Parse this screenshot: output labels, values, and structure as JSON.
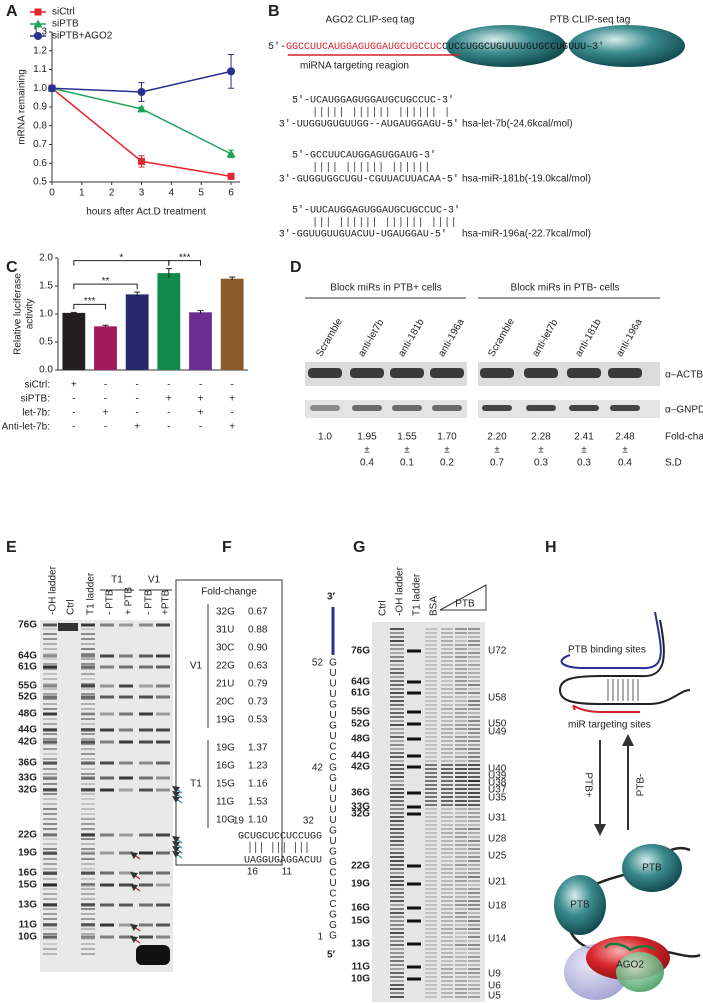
{
  "panel_labels": [
    "A",
    "B",
    "C",
    "D",
    "E",
    "F",
    "G",
    "H"
  ],
  "chart_data": [
    {
      "type": "line",
      "x_label": "hours after Act.D treatment",
      "y_label": "mRNA remaining",
      "x": [
        0,
        3,
        6
      ],
      "xlim": [
        0,
        6.3
      ],
      "xticks": [
        0,
        1,
        2,
        3,
        4,
        5,
        6
      ],
      "ylim": [
        0.5,
        1.3
      ],
      "yticks": [
        0.5,
        0.6,
        0.7,
        0.8,
        0.9,
        {
          "value": 1,
          "label": "1.0"
        },
        1.1,
        1.2,
        1.3
      ],
      "legend": "upper left",
      "series": [
        {
          "name": "siCtrl",
          "color": "#e3262d",
          "marker": "square",
          "values": [
            1,
            0.61,
            0.53
          ],
          "errors": [
            0,
            0.03,
            0.01
          ]
        },
        {
          "name": "siPTB",
          "color": "#1fa35b",
          "marker": "triangle",
          "values": [
            1,
            0.89,
            0.65
          ],
          "errors": [
            0,
            0.01,
            0.02
          ]
        },
        {
          "name": "siPTB+AGO2",
          "color": "#2b2f8f",
          "marker": "circle",
          "values": [
            1,
            0.98,
            1.09
          ],
          "errors": [
            0,
            0.05,
            0.09
          ]
        }
      ]
    },
    {
      "type": "bar",
      "y_label": [
        "Relative luciferase",
        "activity"
      ],
      "ylim": [
        0,
        2
      ],
      "yticks": [
        {
          "value": 0,
          "label": "0.0"
        },
        0.5,
        {
          "value": 1,
          "label": "1.0"
        },
        1.5,
        {
          "value": 2,
          "label": "2.0"
        }
      ],
      "values": [
        1.02,
        0.78,
        1.35,
        1.73,
        1.03,
        1.63
      ],
      "errors": [
        0.01,
        0.02,
        0.04,
        0.08,
        0.03,
        0.03
      ],
      "colors": [
        "#231f20",
        "#a3195b",
        "#27286c",
        "#0f8a4a",
        "#6a2d91",
        "#8a5a2b"
      ],
      "conditions": [
        {
          "name": "siCtrl:",
          "marks": [
            "+",
            "-",
            "-",
            "-",
            "-",
            "-"
          ]
        },
        {
          "name": "siPTB:",
          "marks": [
            "-",
            "-",
            "-",
            "+",
            "+",
            "+"
          ]
        },
        {
          "name": "let-7b:",
          "marks": [
            "-",
            "+",
            "-",
            "-",
            "+",
            "-"
          ]
        },
        {
          "name": "Anti-let-7b:",
          "marks": [
            "-",
            "-",
            "+",
            "-",
            "-",
            "+"
          ]
        }
      ],
      "significance": [
        {
          "label": "***",
          "from": 0,
          "to": 1
        },
        {
          "label": "**",
          "from": 0,
          "to": 2
        },
        {
          "label": "*",
          "from": 0,
          "to": 3
        },
        {
          "label": "***",
          "from": 3,
          "to": 4
        }
      ]
    }
  ],
  "panel_b": {
    "ago2_tag": "AGO2 CLIP-seq tag",
    "ptb_tag": "PTB CLIP-seq tag",
    "sequence": {
      "start": "5′-",
      "target": "GGCCUUCAUGGAGUGGAUGCUGCCUC",
      "rest": "CUCCUGGCUGUUUUGUGCCUGUUU",
      "end": "–3′"
    },
    "target_label": "miRNA targeting reagion",
    "duplexes": [
      {
        "top": "5′-UCAUGGAGUGGAUGCUGCCUC-3′",
        "bottom": "3′-UUGGUGUGUUGG--AUGAUGGAGU-5′",
        "name": "hsa-let-7b(-24.6kcal/mol)"
      },
      {
        "top": "5′-GCCUUCAUGGAGUGGAUG-3′",
        "bottom": "3′-GUGGUGGCUGU-CGUUACUUACAA-5′",
        "name": "hsa-miR-181b(-19.0kcal/mol)"
      },
      {
        "top": "5′-UUCAUGGAGUGGAUGCUGCCUC-3′",
        "bottom": "3′-GGUUGUUGUACUU-UGAUGGAU-5′",
        "name": "hsa-miR-196a(-22.7kcal/mol)"
      }
    ]
  },
  "panel_d": {
    "groups": [
      "Block miRs in PTB+ cells",
      "Block miRs in PTB- cells"
    ],
    "lanes": [
      "Scramble",
      "anti-let7b",
      "anti-181b",
      "anti-196a",
      "Scramble",
      "anti-let7b",
      "anti-181b",
      "anti-196a"
    ],
    "bands": [
      "α–ACTB",
      "α–GNPDA1"
    ],
    "fold_change": [
      "1.0",
      "1.95",
      "1.55",
      "1.70",
      "2.20",
      "2.28",
      "2.41",
      "2.48"
    ],
    "fold_label": "Fold-change",
    "sd": [
      null,
      "0.4",
      "0.1",
      "0.2",
      "0.7",
      "0.3",
      "0.3",
      "0.4"
    ],
    "sd_label": "S.D",
    "pm": "±"
  },
  "panel_e": {
    "lanes": [
      "-OH ladder",
      "Ctrl",
      "T1 ladder",
      "- PTB",
      "+ PTB",
      "- PTB",
      "+PTB"
    ],
    "groups": [
      "T1",
      "V1"
    ],
    "ladder": [
      "76G",
      "64G",
      "61G",
      "55G",
      "52G",
      "48G",
      "44G",
      "42G",
      "36G",
      "33G",
      "32G",
      "22G",
      "19G",
      "16G",
      "15G",
      "13G",
      "11G",
      "10G"
    ],
    "ladder_colors": [
      "#222",
      "#222",
      "#222",
      "#222",
      "#c1272d",
      "#222",
      "#222",
      "#c1272d",
      "#222",
      "#222",
      "#c1272d",
      "#222",
      "#c1272d",
      "#c1272d",
      "#222",
      "#222",
      "#c1272d",
      "#222"
    ],
    "box_title": "Fold-change",
    "box_groups": [
      {
        "name": "V1",
        "color": "#2b8db3",
        "rows": [
          [
            "32G",
            "0.67"
          ],
          [
            "31U",
            "0.88"
          ],
          [
            "30C",
            "0.90"
          ],
          [
            "22G",
            "0.63"
          ],
          [
            "21U",
            "0.79"
          ],
          [
            "20C",
            "0.73"
          ],
          [
            "19G",
            "0.53"
          ]
        ]
      },
      {
        "name": "T1",
        "color": "#c1272d",
        "rows": [
          [
            "19G",
            "1.37"
          ],
          [
            "16G",
            "1.23"
          ],
          [
            "15G",
            "1.16"
          ],
          [
            "11G",
            "1.53"
          ],
          [
            "10G",
            "1.10"
          ]
        ]
      }
    ]
  },
  "panel_f": {
    "three_prime": "3′",
    "five_prime": "5′",
    "column": [
      "G",
      "U",
      "U",
      "U",
      "G",
      "U",
      "G",
      "U",
      "C",
      "C",
      "G",
      "G",
      "U",
      "U",
      "U",
      "U",
      "G",
      "U",
      "G",
      "G",
      "C",
      "U",
      "C",
      "C",
      "G",
      "G",
      "G"
    ],
    "upper": "GCUGCUCCUCCUGG",
    "lower": "UAGGUGAGGACUU",
    "numbers": [
      "52",
      "42",
      "19",
      "32",
      "16",
      "11",
      "1"
    ],
    "number_color": "#c1272d"
  },
  "panel_g": {
    "lanes": [
      "Ctrl",
      "-OH ladder",
      "T1 ladder",
      "BSA"
    ],
    "ramp_label": "PTB",
    "ladder": [
      "76G",
      "64G",
      "61G",
      "55G",
      "52G",
      "48G",
      "44G",
      "42G",
      "36G",
      "33G",
      "32G",
      "22G",
      "19G",
      "16G",
      "15G",
      "13G",
      "11G",
      "10G"
    ],
    "sites": [
      "U72",
      "U58",
      "U50",
      "U49",
      "U40",
      "U39",
      "U38",
      "U37",
      "U35",
      "U31",
      "U28",
      "U25",
      "U21",
      "U18",
      "U14",
      "U9",
      "U6",
      "U5"
    ]
  },
  "panel_h": {
    "binding": "PTB binding sites",
    "targeting": "miR targeting sites",
    "forward": "PTB+",
    "reverse": "PTB-",
    "proteins": [
      "PTB",
      "PTB",
      "AGO2"
    ]
  }
}
